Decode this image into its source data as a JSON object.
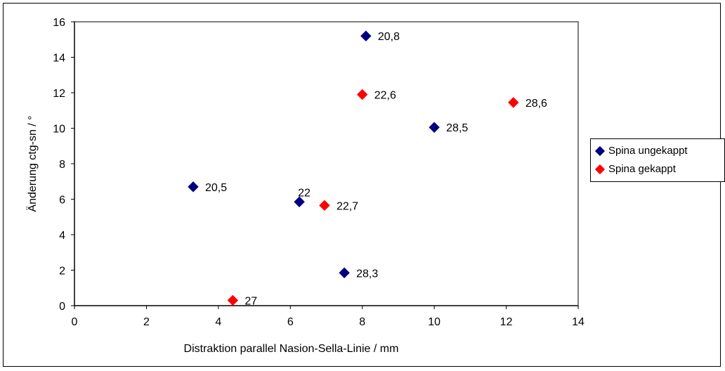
{
  "chart_data": {
    "type": "scatter",
    "xlabel": "Distraktion parallel Nasion-Sella-Linie / mm",
    "ylabel": "Änderung ctg-sn / °",
    "xlim": [
      0,
      14
    ],
    "ylim": [
      0,
      16
    ],
    "xticks": [
      "0",
      "2",
      "4",
      "6",
      "8",
      "10",
      "12",
      "14"
    ],
    "yticks": [
      "0",
      "2",
      "4",
      "6",
      "8",
      "10",
      "12",
      "14",
      "16"
    ],
    "grid": false,
    "legend_position": "right",
    "series": [
      {
        "name": "Spina ungekappt",
        "color": "#000080",
        "points": [
          {
            "x": 8.1,
            "y": 15.2,
            "label": "20,8"
          },
          {
            "x": 10.0,
            "y": 10.05,
            "label": "28,5"
          },
          {
            "x": 3.3,
            "y": 6.7,
            "label": "20,5"
          },
          {
            "x": 6.25,
            "y": 5.85,
            "label": "22"
          },
          {
            "x": 7.5,
            "y": 1.85,
            "label": "28,3"
          }
        ]
      },
      {
        "name": "Spina gekappt",
        "color": "#ff0000",
        "points": [
          {
            "x": 8.0,
            "y": 11.9,
            "label": "22,6"
          },
          {
            "x": 12.2,
            "y": 11.45,
            "label": "28,6"
          },
          {
            "x": 6.95,
            "y": 5.65,
            "label": "22,7"
          },
          {
            "x": 4.4,
            "y": 0.3,
            "label": "27"
          }
        ]
      }
    ]
  }
}
